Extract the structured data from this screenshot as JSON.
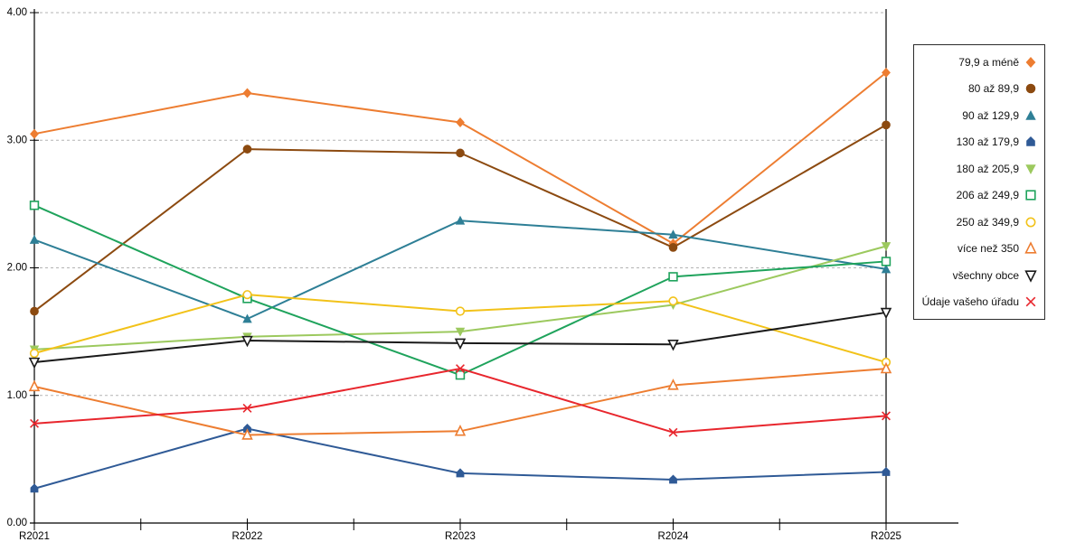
{
  "chart_data": {
    "type": "line",
    "title": "",
    "xlabel": "",
    "ylabel": "",
    "categories": [
      "R2021",
      "R2022",
      "R2023",
      "R2024",
      "R2025"
    ],
    "ylim": [
      0,
      4
    ],
    "y_tick_labels": [
      "0.00",
      "1.00",
      "2.00",
      "3.00",
      "4.00"
    ],
    "grid": "horizontal dashed",
    "legend_position": "right",
    "series": [
      {
        "name": "79,9 a méně",
        "marker": "diamond-filled",
        "color": "#ED7D31",
        "values": [
          3.05,
          3.37,
          3.14,
          2.19,
          3.53
        ]
      },
      {
        "name": "80 až 89,9",
        "marker": "circle-filled",
        "color": "#8C4A10",
        "values": [
          1.66,
          2.93,
          2.9,
          2.16,
          3.12
        ]
      },
      {
        "name": "90 až 129,9",
        "marker": "triangle-up-filled",
        "color": "#2E7F96",
        "values": [
          2.22,
          1.6,
          2.37,
          2.26,
          1.99
        ]
      },
      {
        "name": "130 až 179,9",
        "marker": "pentagon-filled",
        "color": "#2F5A96",
        "values": [
          0.27,
          0.74,
          0.39,
          0.34,
          0.4
        ]
      },
      {
        "name": "180 až 205,9",
        "marker": "triangle-down-filled",
        "color": "#9CC95E",
        "values": [
          1.36,
          1.46,
          1.5,
          1.71,
          2.17
        ]
      },
      {
        "name": "206 až 249,9",
        "marker": "square-open",
        "color": "#1FA35C",
        "values": [
          2.49,
          1.76,
          1.16,
          1.93,
          2.05
        ]
      },
      {
        "name": "250 až 349,9",
        "marker": "circle-open",
        "color": "#F2C219",
        "values": [
          1.33,
          1.79,
          1.66,
          1.74,
          1.26
        ]
      },
      {
        "name": "více než 350",
        "marker": "triangle-up-open",
        "color": "#ED7D31",
        "values": [
          1.07,
          0.69,
          0.72,
          1.08,
          1.21
        ]
      },
      {
        "name": "všechny obce",
        "marker": "triangle-down-open",
        "color": "#1A1A1A",
        "values": [
          1.26,
          1.43,
          1.41,
          1.4,
          1.65
        ]
      },
      {
        "name": "Údaje vašeho úřadu",
        "marker": "x",
        "color": "#E8262D",
        "values": [
          0.78,
          0.9,
          1.21,
          0.71,
          0.84
        ]
      }
    ]
  },
  "colors": {
    "background": "#FFFFFF",
    "axis": "#000000",
    "gridline": "#B3B3B3",
    "legend_border": "#2B2B2B"
  }
}
